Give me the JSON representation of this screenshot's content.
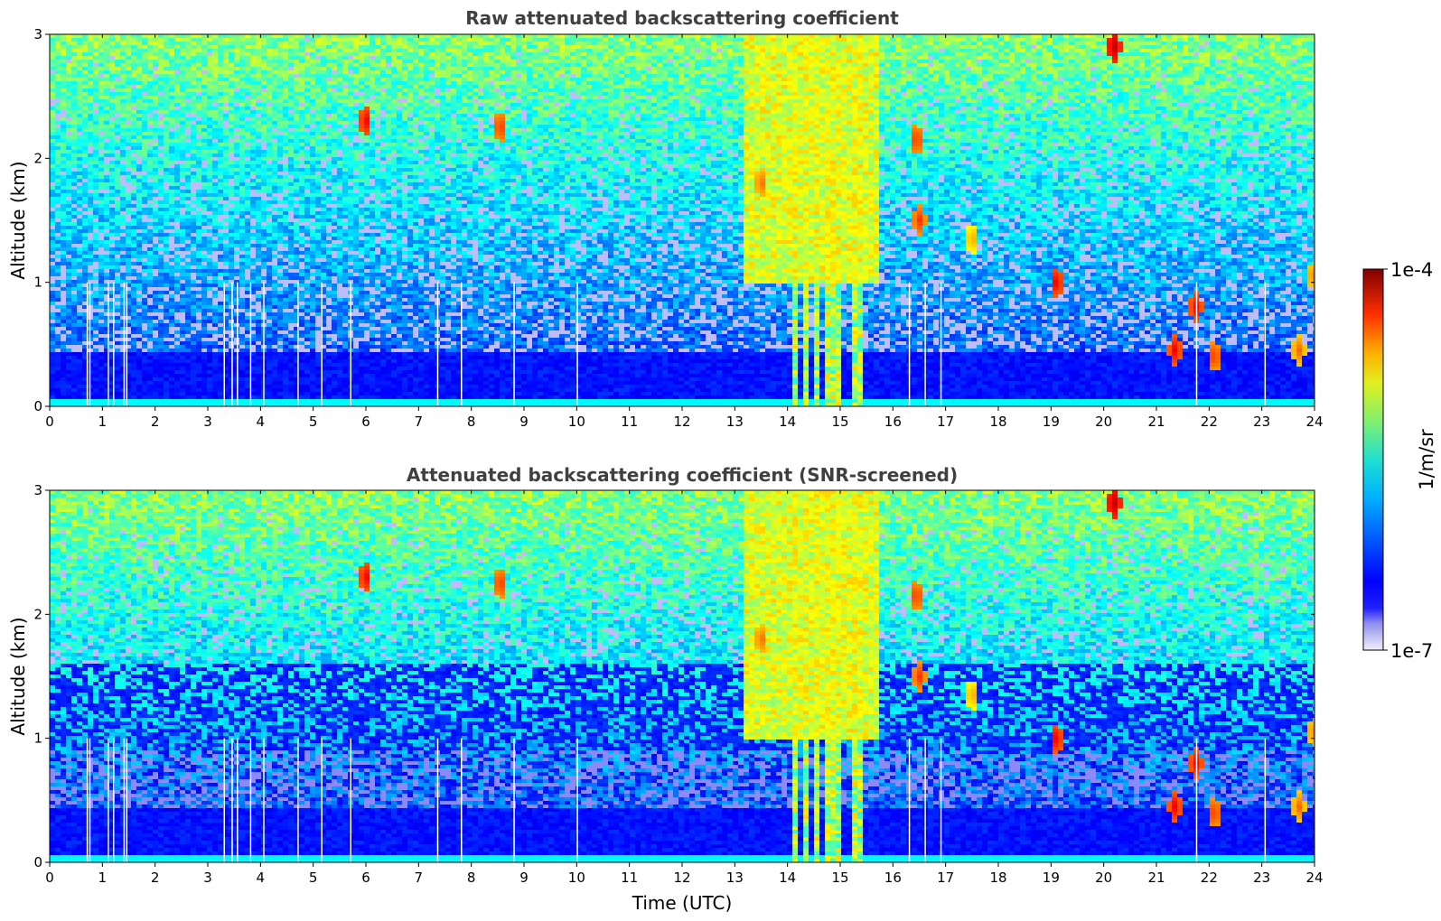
{
  "chart_data": [
    {
      "type": "heatmap",
      "title": "Raw attenuated backscattering coefficient",
      "xlabel": "",
      "ylabel": "Altitude (km)",
      "xlim": [
        0,
        24
      ],
      "ylim": [
        0,
        3
      ],
      "xticks": [
        "0",
        "1",
        "2",
        "3",
        "4",
        "5",
        "6",
        "7",
        "8",
        "9",
        "10",
        "11",
        "12",
        "13",
        "14",
        "15",
        "16",
        "17",
        "18",
        "19",
        "20",
        "21",
        "22",
        "23",
        "24"
      ],
      "yticks": [
        "0",
        "1",
        "2",
        "3"
      ],
      "screened": false,
      "features": {
        "boundary_layer_top_km": 0.45,
        "vertical_gaps_utc": [
          0.7,
          0.75,
          1.1,
          1.2,
          1.4,
          1.45,
          3.3,
          3.45,
          3.55,
          3.8,
          4.05,
          4.7,
          5.15,
          5.7,
          7.35,
          7.8,
          8.8,
          10.0,
          16.3,
          16.6,
          16.9,
          21.75,
          23.05
        ],
        "rain_columns_utc": [
          14.15,
          14.35,
          14.55,
          14.85,
          14.95,
          15.35
        ],
        "cloud_patches": [
          {
            "t": 6.0,
            "z": 2.3,
            "level": 0.9
          },
          {
            "t": 8.55,
            "z": 2.25,
            "level": 0.85
          },
          {
            "t": 13.5,
            "z": 1.8,
            "level": 0.8
          },
          {
            "t": 16.45,
            "z": 2.15,
            "level": 0.85
          },
          {
            "t": 16.5,
            "z": 1.5,
            "level": 0.85
          },
          {
            "t": 17.5,
            "z": 1.35,
            "level": 0.75
          },
          {
            "t": 19.1,
            "z": 1.0,
            "level": 0.9
          },
          {
            "t": 20.2,
            "z": 2.9,
            "level": 0.95
          },
          {
            "t": 21.35,
            "z": 0.45,
            "level": 0.9
          },
          {
            "t": 21.75,
            "z": 0.8,
            "level": 0.9
          },
          {
            "t": 22.1,
            "z": 0.4,
            "level": 0.85
          },
          {
            "t": 23.7,
            "z": 0.45,
            "level": 0.8
          },
          {
            "t": 24.0,
            "z": 1.05,
            "level": 0.8
          }
        ]
      }
    },
    {
      "type": "heatmap",
      "title": "Attenuated backscattering coefficient (SNR-screened)",
      "xlabel": "Time (UTC)",
      "ylabel": "Altitude (km)",
      "xlim": [
        0,
        24
      ],
      "ylim": [
        0,
        3
      ],
      "xticks": [
        "0",
        "1",
        "2",
        "3",
        "4",
        "5",
        "6",
        "7",
        "8",
        "9",
        "10",
        "11",
        "12",
        "13",
        "14",
        "15",
        "16",
        "17",
        "18",
        "19",
        "20",
        "21",
        "22",
        "23",
        "24"
      ],
      "yticks": [
        "0",
        "1",
        "2",
        "3"
      ],
      "screened": true,
      "features": {
        "boundary_layer_top_km": 0.45,
        "vertical_gaps_utc": [
          0.7,
          0.75,
          1.1,
          1.2,
          1.4,
          1.45,
          3.3,
          3.45,
          3.55,
          3.8,
          4.05,
          4.7,
          5.15,
          5.7,
          7.35,
          7.8,
          8.8,
          10.0,
          16.3,
          16.6,
          16.9,
          21.75,
          23.05
        ],
        "rain_columns_utc": [
          14.15,
          14.35,
          14.55,
          14.85,
          14.95,
          15.35
        ],
        "cloud_patches": [
          {
            "t": 6.0,
            "z": 2.3,
            "level": 0.9
          },
          {
            "t": 8.55,
            "z": 2.25,
            "level": 0.85
          },
          {
            "t": 13.5,
            "z": 1.8,
            "level": 0.8
          },
          {
            "t": 16.45,
            "z": 2.15,
            "level": 0.85
          },
          {
            "t": 16.5,
            "z": 1.5,
            "level": 0.85
          },
          {
            "t": 17.5,
            "z": 1.35,
            "level": 0.75
          },
          {
            "t": 19.1,
            "z": 1.0,
            "level": 0.9
          },
          {
            "t": 20.2,
            "z": 2.9,
            "level": 0.95
          },
          {
            "t": 21.35,
            "z": 0.45,
            "level": 0.9
          },
          {
            "t": 21.75,
            "z": 0.8,
            "level": 0.9
          },
          {
            "t": 22.1,
            "z": 0.4,
            "level": 0.85
          },
          {
            "t": 23.7,
            "z": 0.45,
            "level": 0.8
          },
          {
            "t": 24.0,
            "z": 1.05,
            "level": 0.8
          }
        ]
      }
    }
  ],
  "colorbar": {
    "label": "1/m/sr",
    "min_label": "1e-7",
    "max_label": "1e-4",
    "scale": "log",
    "colormap": "jet (white/lavender at low end)"
  }
}
